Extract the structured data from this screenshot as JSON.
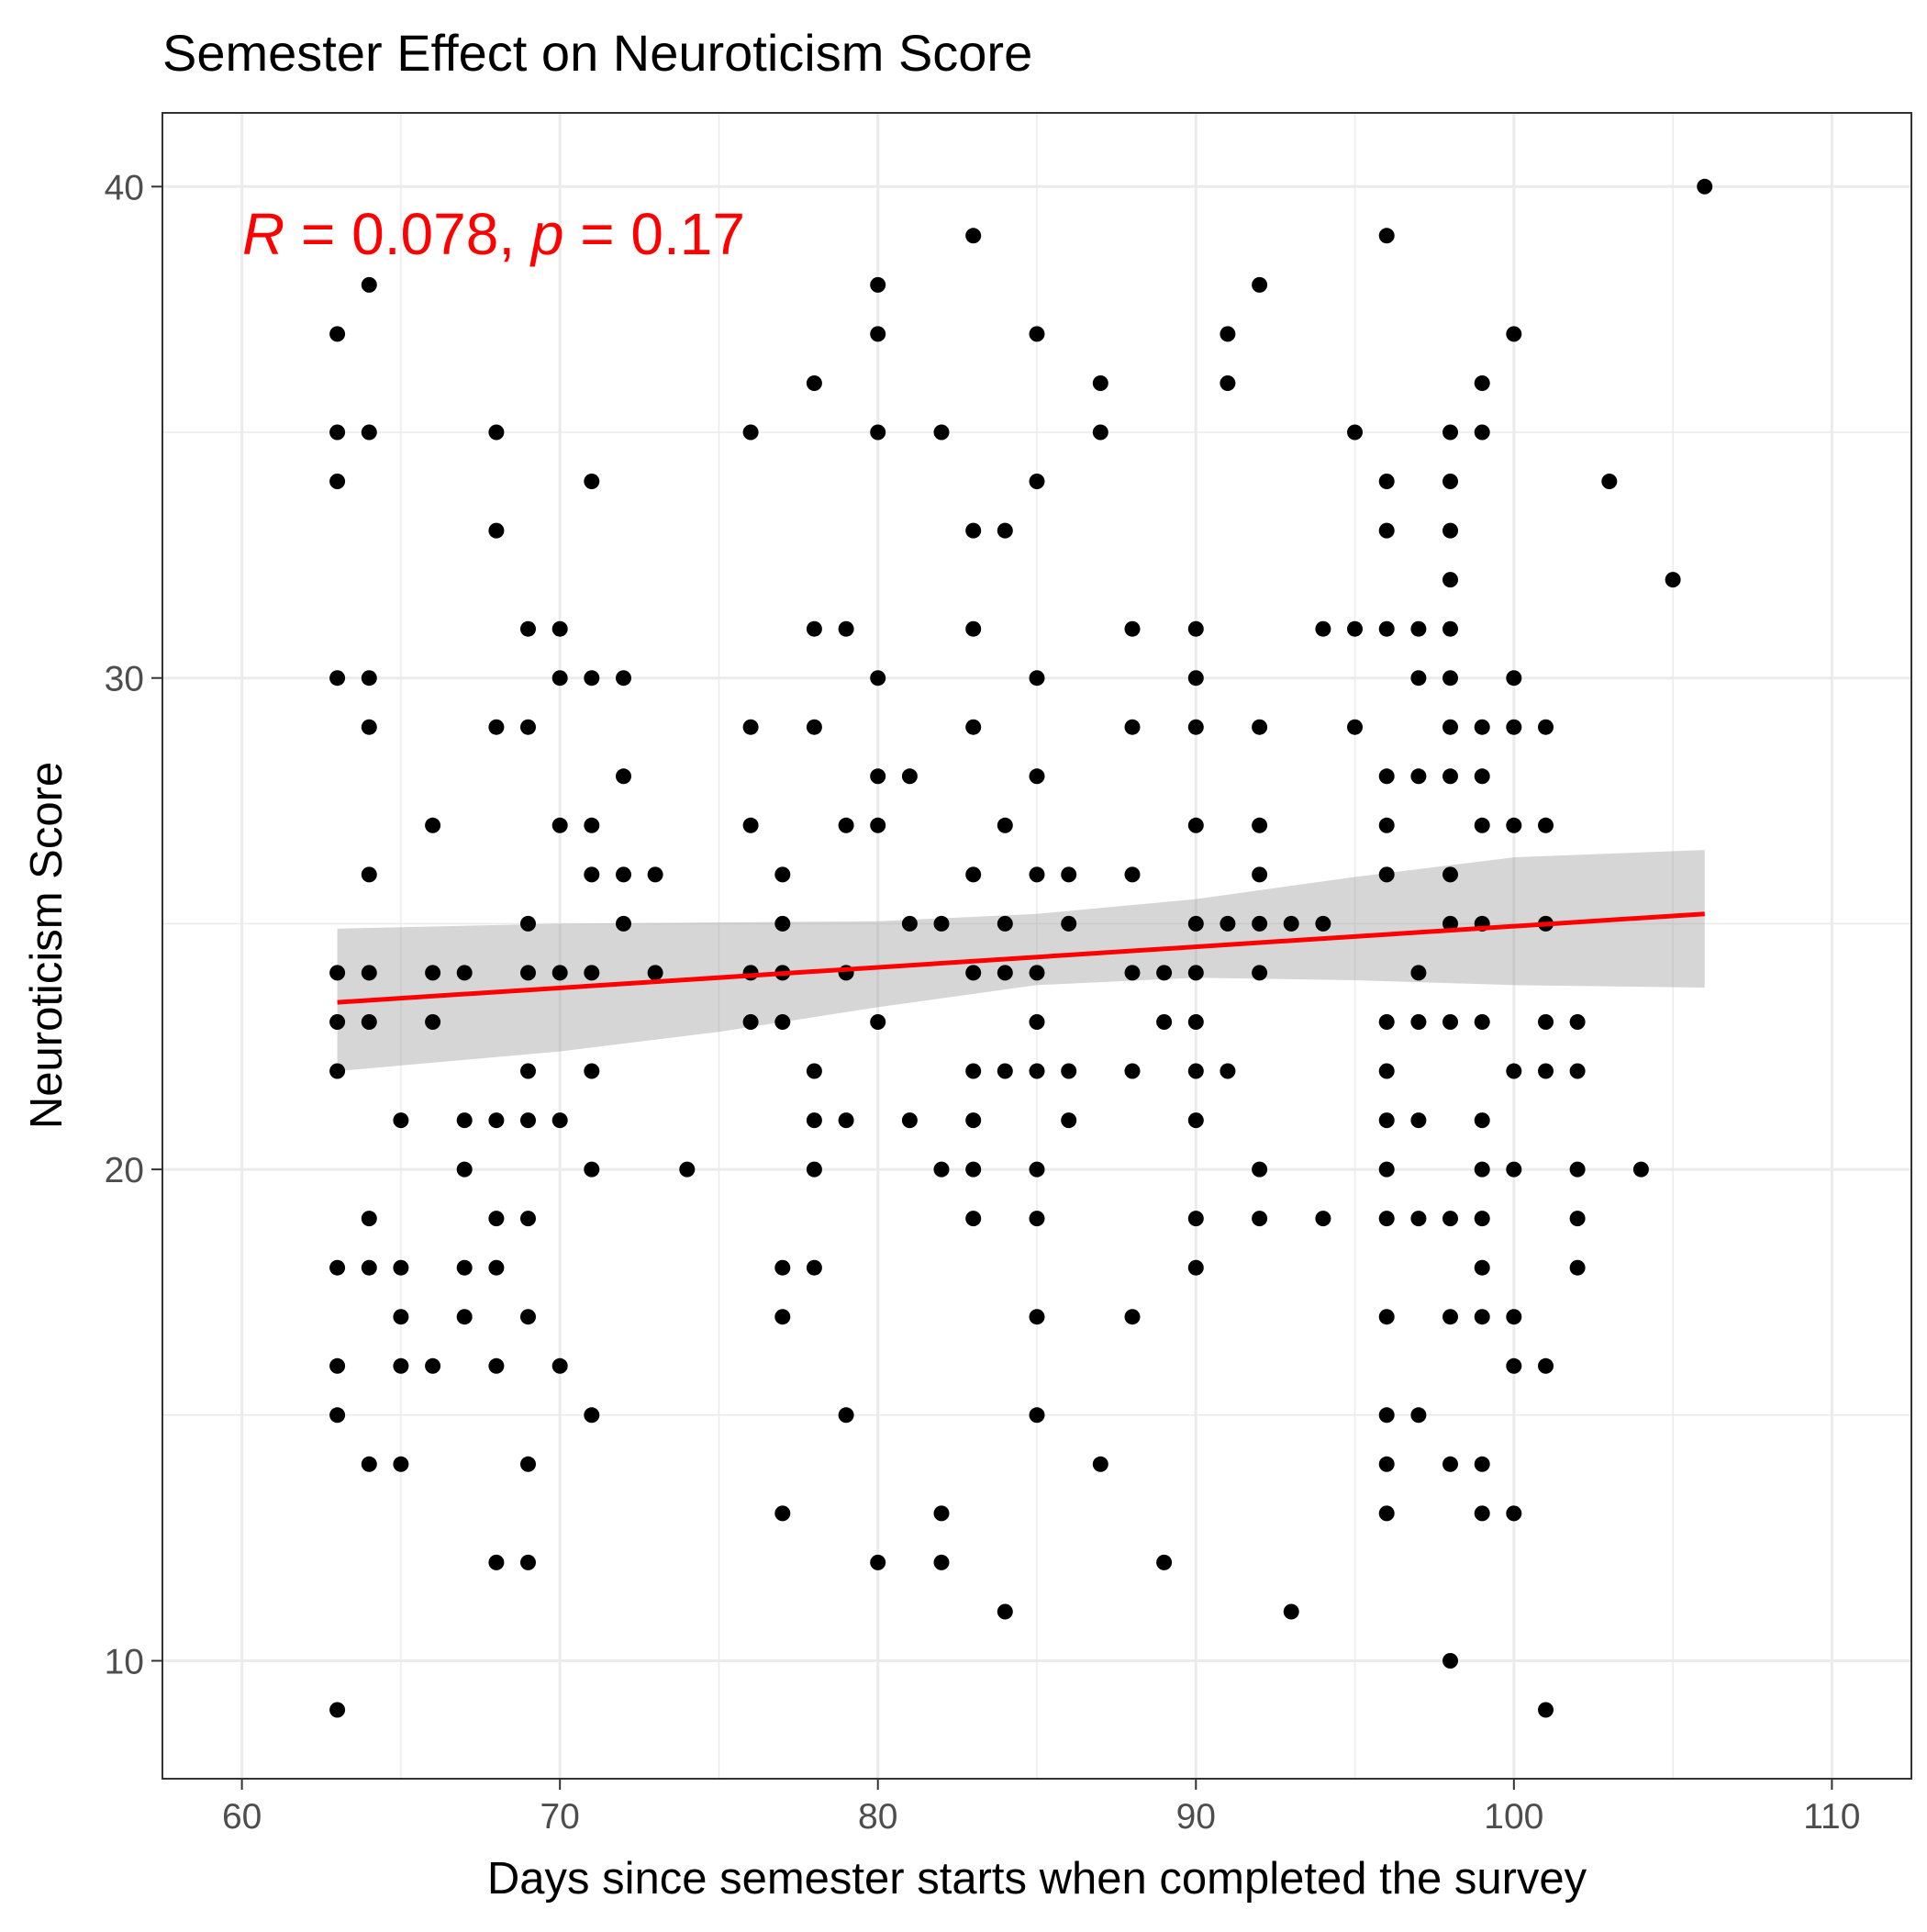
{
  "chart_data": {
    "type": "scatter",
    "title": "Semester Effect on Neuroticism Score",
    "xlabel": "Days since semester starts when completed the survey",
    "ylabel": "Neuroticism Score",
    "xlim": [
      57.5,
      112.5
    ],
    "ylim": [
      7.6,
      41.5
    ],
    "xticks": [
      60,
      70,
      80,
      90,
      100,
      110
    ],
    "yticks": [
      10,
      20,
      30,
      40
    ],
    "grid": true,
    "annotation": {
      "r_symbol": "R",
      "r_value": " = 0.078, ",
      "p_symbol": "p",
      "p_value": " = 0.17",
      "color": "#ff0000"
    },
    "regression": {
      "x": [
        63,
        106
      ],
      "y": [
        23.4,
        25.2
      ],
      "color": "#ff0000",
      "ci_upper": [
        [
          63,
          24.9
        ],
        [
          70,
          25.0
        ],
        [
          80,
          25.05
        ],
        [
          85,
          25.2
        ],
        [
          90,
          25.5
        ],
        [
          95,
          25.95
        ],
        [
          100,
          26.35
        ],
        [
          106,
          26.5
        ]
      ],
      "ci_lower": [
        [
          106,
          23.7
        ],
        [
          100,
          23.75
        ],
        [
          95,
          23.85
        ],
        [
          90,
          23.9
        ],
        [
          85,
          23.75
        ],
        [
          80,
          23.3
        ],
        [
          75,
          22.8
        ],
        [
          70,
          22.4
        ],
        [
          63,
          22.0
        ]
      ]
    },
    "points": [
      [
        63,
        37
      ],
      [
        63,
        35
      ],
      [
        63,
        34
      ],
      [
        63,
        30
      ],
      [
        63,
        24
      ],
      [
        63,
        23
      ],
      [
        63,
        22
      ],
      [
        63,
        18
      ],
      [
        63,
        16
      ],
      [
        63,
        15
      ],
      [
        63,
        9
      ],
      [
        64,
        38
      ],
      [
        64,
        35
      ],
      [
        64,
        30
      ],
      [
        64,
        29
      ],
      [
        64,
        26
      ],
      [
        64,
        24
      ],
      [
        64,
        23
      ],
      [
        64,
        19
      ],
      [
        64,
        18
      ],
      [
        64,
        14
      ],
      [
        65,
        21
      ],
      [
        65,
        18
      ],
      [
        65,
        17
      ],
      [
        65,
        16
      ],
      [
        65,
        14
      ],
      [
        66,
        27
      ],
      [
        66,
        24
      ],
      [
        66,
        23
      ],
      [
        66,
        16
      ],
      [
        67,
        24
      ],
      [
        67,
        21
      ],
      [
        67,
        20
      ],
      [
        67,
        18
      ],
      [
        67,
        17
      ],
      [
        68,
        35
      ],
      [
        68,
        33
      ],
      [
        68,
        29
      ],
      [
        68,
        21
      ],
      [
        68,
        19
      ],
      [
        68,
        18
      ],
      [
        68,
        16
      ],
      [
        68,
        12
      ],
      [
        69,
        31
      ],
      [
        69,
        29
      ],
      [
        69,
        25
      ],
      [
        69,
        24
      ],
      [
        69,
        22
      ],
      [
        69,
        21
      ],
      [
        69,
        19
      ],
      [
        69,
        17
      ],
      [
        69,
        14
      ],
      [
        69,
        12
      ],
      [
        70,
        31
      ],
      [
        70,
        30
      ],
      [
        70,
        27
      ],
      [
        70,
        24
      ],
      [
        70,
        21
      ],
      [
        70,
        16
      ],
      [
        71,
        34
      ],
      [
        71,
        30
      ],
      [
        71,
        27
      ],
      [
        71,
        26
      ],
      [
        71,
        24
      ],
      [
        71,
        22
      ],
      [
        71,
        20
      ],
      [
        71,
        15
      ],
      [
        72,
        30
      ],
      [
        72,
        28
      ],
      [
        72,
        26
      ],
      [
        72,
        25
      ],
      [
        73,
        26
      ],
      [
        73,
        24
      ],
      [
        74,
        20
      ],
      [
        76,
        35
      ],
      [
        76,
        29
      ],
      [
        76,
        27
      ],
      [
        76,
        24
      ],
      [
        76,
        23
      ],
      [
        77,
        26
      ],
      [
        77,
        25
      ],
      [
        77,
        24
      ],
      [
        77,
        23
      ],
      [
        77,
        18
      ],
      [
        77,
        17
      ],
      [
        77,
        13
      ],
      [
        78,
        36
      ],
      [
        78,
        31
      ],
      [
        78,
        29
      ],
      [
        78,
        22
      ],
      [
        78,
        21
      ],
      [
        78,
        20
      ],
      [
        78,
        18
      ],
      [
        79,
        31
      ],
      [
        79,
        27
      ],
      [
        79,
        24
      ],
      [
        79,
        21
      ],
      [
        79,
        15
      ],
      [
        80,
        38
      ],
      [
        80,
        37
      ],
      [
        80,
        35
      ],
      [
        80,
        30
      ],
      [
        80,
        28
      ],
      [
        80,
        27
      ],
      [
        80,
        23
      ],
      [
        80,
        12
      ],
      [
        81,
        28
      ],
      [
        81,
        25
      ],
      [
        81,
        21
      ],
      [
        82,
        35
      ],
      [
        82,
        25
      ],
      [
        82,
        20
      ],
      [
        82,
        13
      ],
      [
        82,
        12
      ],
      [
        83,
        39
      ],
      [
        83,
        33
      ],
      [
        83,
        31
      ],
      [
        83,
        29
      ],
      [
        83,
        26
      ],
      [
        83,
        24
      ],
      [
        83,
        22
      ],
      [
        83,
        21
      ],
      [
        83,
        20
      ],
      [
        83,
        19
      ],
      [
        84,
        33
      ],
      [
        84,
        27
      ],
      [
        84,
        25
      ],
      [
        84,
        24
      ],
      [
        84,
        22
      ],
      [
        84,
        11
      ],
      [
        85,
        37
      ],
      [
        85,
        34
      ],
      [
        85,
        30
      ],
      [
        85,
        28
      ],
      [
        85,
        26
      ],
      [
        85,
        24
      ],
      [
        85,
        23
      ],
      [
        85,
        22
      ],
      [
        85,
        20
      ],
      [
        85,
        19
      ],
      [
        85,
        17
      ],
      [
        85,
        15
      ],
      [
        86,
        26
      ],
      [
        86,
        25
      ],
      [
        86,
        22
      ],
      [
        86,
        21
      ],
      [
        87,
        36
      ],
      [
        87,
        35
      ],
      [
        87,
        14
      ],
      [
        88,
        31
      ],
      [
        88,
        29
      ],
      [
        88,
        26
      ],
      [
        88,
        24
      ],
      [
        88,
        22
      ],
      [
        88,
        17
      ],
      [
        89,
        24
      ],
      [
        89,
        23
      ],
      [
        89,
        12
      ],
      [
        90,
        31
      ],
      [
        90,
        30
      ],
      [
        90,
        29
      ],
      [
        90,
        27
      ],
      [
        90,
        25
      ],
      [
        90,
        24
      ],
      [
        90,
        23
      ],
      [
        90,
        22
      ],
      [
        90,
        21
      ],
      [
        90,
        19
      ],
      [
        90,
        18
      ],
      [
        91,
        37
      ],
      [
        91,
        36
      ],
      [
        91,
        25
      ],
      [
        91,
        22
      ],
      [
        92,
        38
      ],
      [
        92,
        29
      ],
      [
        92,
        27
      ],
      [
        92,
        26
      ],
      [
        92,
        25
      ],
      [
        92,
        24
      ],
      [
        92,
        20
      ],
      [
        92,
        19
      ],
      [
        93,
        25
      ],
      [
        93,
        11
      ],
      [
        94,
        31
      ],
      [
        94,
        25
      ],
      [
        94,
        19
      ],
      [
        95,
        35
      ],
      [
        95,
        31
      ],
      [
        95,
        29
      ],
      [
        96,
        39
      ],
      [
        96,
        34
      ],
      [
        96,
        33
      ],
      [
        96,
        31
      ],
      [
        96,
        28
      ],
      [
        96,
        27
      ],
      [
        96,
        26
      ],
      [
        96,
        23
      ],
      [
        96,
        22
      ],
      [
        96,
        21
      ],
      [
        96,
        20
      ],
      [
        96,
        19
      ],
      [
        96,
        17
      ],
      [
        96,
        15
      ],
      [
        96,
        14
      ],
      [
        96,
        13
      ],
      [
        97,
        31
      ],
      [
        97,
        30
      ],
      [
        97,
        28
      ],
      [
        97,
        24
      ],
      [
        97,
        23
      ],
      [
        97,
        21
      ],
      [
        97,
        19
      ],
      [
        97,
        15
      ],
      [
        98,
        35
      ],
      [
        98,
        34
      ],
      [
        98,
        33
      ],
      [
        98,
        32
      ],
      [
        98,
        31
      ],
      [
        98,
        30
      ],
      [
        98,
        29
      ],
      [
        98,
        28
      ],
      [
        98,
        26
      ],
      [
        98,
        25
      ],
      [
        98,
        23
      ],
      [
        98,
        19
      ],
      [
        98,
        17
      ],
      [
        98,
        14
      ],
      [
        98,
        10
      ],
      [
        99,
        36
      ],
      [
        99,
        35
      ],
      [
        99,
        29
      ],
      [
        99,
        28
      ],
      [
        99,
        27
      ],
      [
        99,
        25
      ],
      [
        99,
        23
      ],
      [
        99,
        21
      ],
      [
        99,
        20
      ],
      [
        99,
        19
      ],
      [
        99,
        18
      ],
      [
        99,
        17
      ],
      [
        99,
        14
      ],
      [
        99,
        13
      ],
      [
        100,
        37
      ],
      [
        100,
        30
      ],
      [
        100,
        29
      ],
      [
        100,
        27
      ],
      [
        100,
        22
      ],
      [
        100,
        20
      ],
      [
        100,
        17
      ],
      [
        100,
        16
      ],
      [
        100,
        13
      ],
      [
        101,
        29
      ],
      [
        101,
        27
      ],
      [
        101,
        25
      ],
      [
        101,
        23
      ],
      [
        101,
        22
      ],
      [
        101,
        16
      ],
      [
        101,
        9
      ],
      [
        102,
        23
      ],
      [
        102,
        22
      ],
      [
        102,
        20
      ],
      [
        102,
        19
      ],
      [
        102,
        18
      ],
      [
        103,
        34
      ],
      [
        104,
        20
      ],
      [
        105,
        32
      ],
      [
        106,
        40
      ]
    ]
  }
}
